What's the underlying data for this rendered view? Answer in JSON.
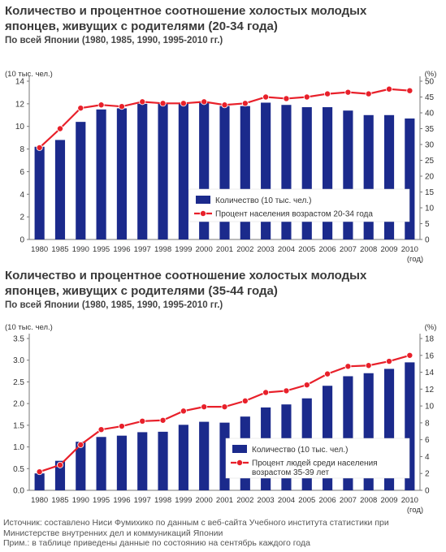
{
  "charts": [
    {
      "title_line1": "Количество и процентное соотношение холостых молодых",
      "title_line2": "японцев, живущих с родителями (20-34 года)",
      "subtitle": "По всей Японии (1980, 1985, 1990, 1995-2010 гг.)",
      "left_unit": "(10 тыс. чел.)",
      "right_unit": "(%)",
      "x_unit": "(год)",
      "legend_bar": "Количество (10 тыс. чел.)",
      "legend_line_1": "Процент населения возрастом 20-34 года",
      "legend_line_2": ""
    },
    {
      "title_line1": "Количество и процентное соотношение холостых молодых",
      "title_line2": "японцев, живущих с родителями (35-44 года)",
      "subtitle": "По всей Японии (1980, 1985, 1990, 1995-2010 гг.)",
      "left_unit": "(10 тыс. чел.)",
      "right_unit": "(%)",
      "x_unit": "(год)",
      "legend_bar": "Количество (10 тыс. чел.)",
      "legend_line_1": "Процент людей среди населения",
      "legend_line_2": "возрастом 35-39 лет"
    }
  ],
  "footer": {
    "line1": "Источник: составлено Ниси Фумихико по данным с веб-сайта Учебного института статистики при",
    "line2": "Министерстве внутренних дел и коммуникаций Японии",
    "line3": "Прим.: в таблице приведены данные по состоянию на сентябрь каждого года"
  },
  "chart_data": [
    {
      "type": "bar",
      "categories": [
        "1980",
        "1985",
        "1990",
        "1995",
        "1996",
        "1997",
        "1998",
        "1999",
        "2000",
        "2001",
        "2002",
        "2003",
        "2004",
        "2005",
        "2006",
        "2007",
        "2008",
        "2009",
        "2010"
      ],
      "series": [
        {
          "name": "Количество (10 тыс. чел.)",
          "type": "bar",
          "axis": "left",
          "color": "#1b2a8c",
          "values": [
            8.2,
            8.8,
            10.4,
            11.5,
            11.6,
            12.0,
            12.0,
            12.0,
            12.1,
            11.8,
            11.8,
            12.1,
            11.9,
            11.7,
            11.7,
            11.4,
            11.0,
            11.0,
            10.7
          ]
        },
        {
          "name": "Процент населения возрастом 20-34 года",
          "type": "line",
          "axis": "right",
          "color": "#e8202a",
          "values": [
            29.0,
            35.0,
            41.5,
            42.5,
            42.0,
            43.5,
            43.0,
            43.0,
            43.5,
            42.5,
            43.0,
            45.0,
            44.5,
            45.0,
            46.0,
            46.5,
            46.0,
            47.5,
            47.0
          ]
        }
      ],
      "y_left": {
        "min": 0,
        "max": 14,
        "step": 2
      },
      "y_right": {
        "min": 0,
        "max": 50,
        "step": 5
      },
      "legend_position": "bottom-right",
      "grid": false
    },
    {
      "type": "bar",
      "categories": [
        "1980",
        "1985",
        "1990",
        "1995",
        "1996",
        "1997",
        "1998",
        "1999",
        "2000",
        "2001",
        "2002",
        "2003",
        "2004",
        "2005",
        "2006",
        "2007",
        "2008",
        "2009",
        "2010"
      ],
      "series": [
        {
          "name": "Количество (10 тыс. чел.)",
          "type": "bar",
          "axis": "left",
          "color": "#1b2a8c",
          "values": [
            0.39,
            0.68,
            1.12,
            1.23,
            1.26,
            1.34,
            1.35,
            1.51,
            1.58,
            1.56,
            1.7,
            1.91,
            1.98,
            2.12,
            2.41,
            2.63,
            2.7,
            2.8,
            2.95
          ]
        },
        {
          "name": "Процент людей среди населения возрастом 35-39 лет",
          "type": "line",
          "axis": "right",
          "color": "#e8202a",
          "values": [
            2.2,
            3.0,
            5.4,
            7.2,
            7.6,
            8.2,
            8.3,
            9.4,
            9.9,
            9.9,
            10.6,
            11.6,
            11.8,
            12.5,
            13.8,
            14.7,
            14.8,
            15.3,
            16.0
          ]
        }
      ],
      "y_left": {
        "min": 0,
        "max": 3.5,
        "step": 0.5
      },
      "y_right": {
        "min": 0,
        "max": 18,
        "step": 2
      },
      "legend_position": "bottom-right",
      "grid": false
    }
  ]
}
